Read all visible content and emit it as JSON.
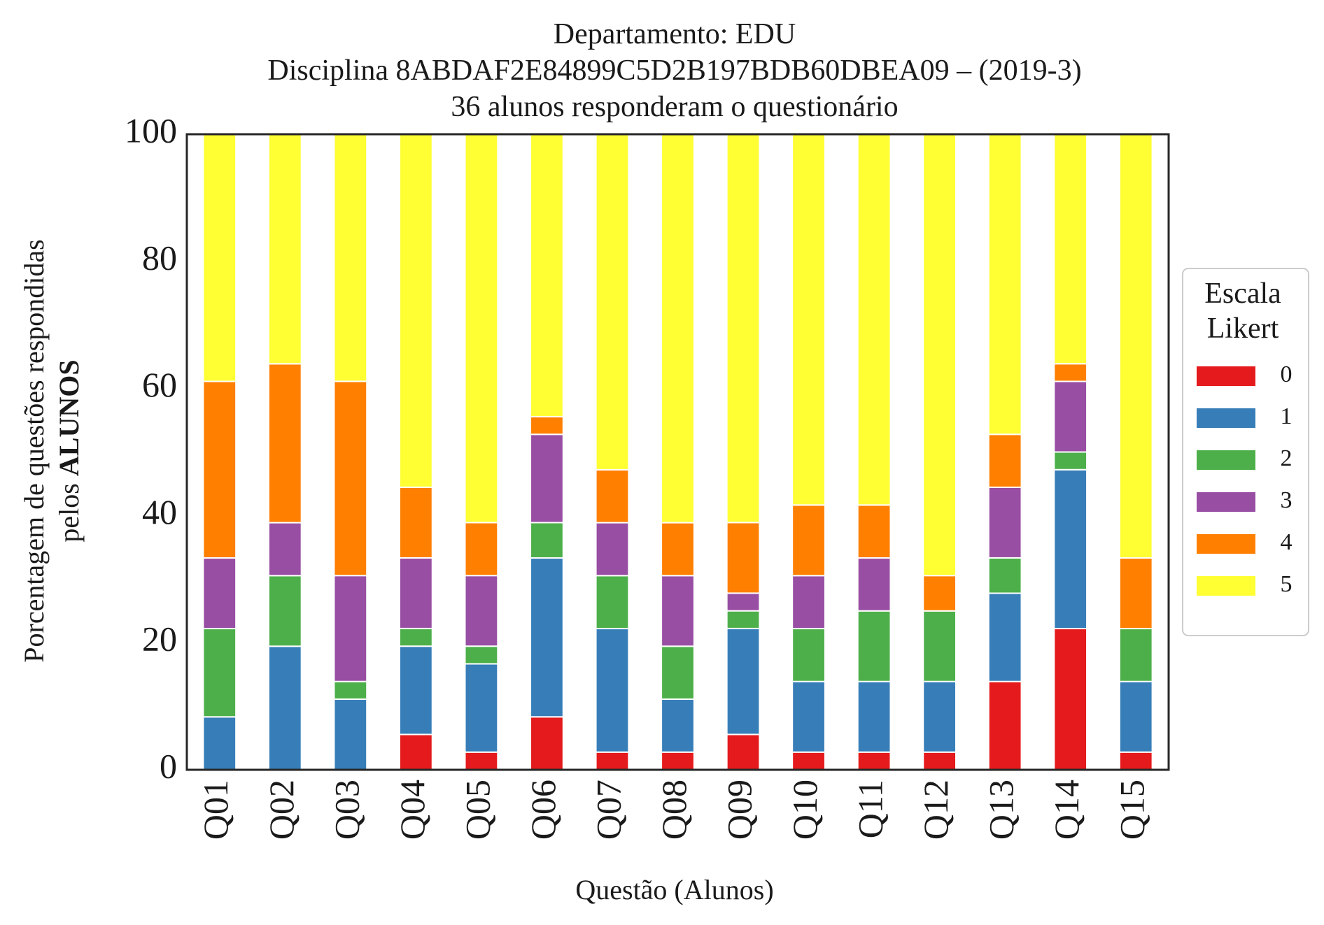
{
  "chart_data": {
    "type": "bar",
    "stacked": true,
    "title_lines": [
      "Departamento: EDU",
      "Disciplina 8ABDAF2E84899C5D2B197BDB60DBEA09 – (2019-3)",
      "36 alunos responderam o questionário"
    ],
    "xlabel": "Questão (Alunos)",
    "ylabel_line1": "Porcentagem de questões respondidas",
    "ylabel_line2_prefix": "pelos ",
    "ylabel_line2_bold": "ALUNOS",
    "ylim": [
      0,
      100
    ],
    "yticks": [
      "0",
      "20",
      "40",
      "60",
      "80",
      "100"
    ],
    "grid": false,
    "legend_position": "right",
    "legend_title_lines": [
      "Escala",
      "Likert"
    ],
    "categories": [
      "Q01",
      "Q02",
      "Q03",
      "Q04",
      "Q05",
      "Q06",
      "Q07",
      "Q08",
      "Q09",
      "Q10",
      "Q11",
      "Q12",
      "Q13",
      "Q14",
      "Q15"
    ],
    "series": [
      {
        "name": "0",
        "color": "#e41a1c",
        "values": [
          0,
          0,
          0,
          5.56,
          2.78,
          8.33,
          2.78,
          2.78,
          5.56,
          2.78,
          2.78,
          2.78,
          13.89,
          22.22,
          2.78
        ]
      },
      {
        "name": "1",
        "color": "#377eb8",
        "values": [
          8.33,
          19.44,
          11.11,
          13.89,
          13.89,
          25.0,
          19.44,
          8.33,
          16.67,
          11.11,
          11.11,
          11.11,
          13.89,
          25.0,
          11.11
        ]
      },
      {
        "name": "2",
        "color": "#4daf4a",
        "values": [
          13.89,
          11.11,
          2.78,
          2.78,
          2.78,
          5.56,
          8.33,
          8.33,
          2.78,
          8.33,
          11.11,
          11.11,
          5.56,
          2.78,
          8.33
        ]
      },
      {
        "name": "3",
        "color": "#984ea3",
        "values": [
          11.11,
          8.33,
          16.67,
          11.11,
          11.11,
          13.89,
          8.33,
          11.11,
          2.78,
          8.33,
          8.33,
          0,
          11.11,
          11.11,
          0
        ]
      },
      {
        "name": "4",
        "color": "#ff7f00",
        "values": [
          27.78,
          25.0,
          30.56,
          11.11,
          8.33,
          2.78,
          8.33,
          8.33,
          11.11,
          11.11,
          8.33,
          5.56,
          8.33,
          2.78,
          11.11
        ]
      },
      {
        "name": "5",
        "color": "#ffff33",
        "values": [
          38.89,
          36.11,
          38.89,
          55.56,
          61.11,
          44.44,
          52.78,
          61.11,
          61.11,
          58.33,
          58.33,
          69.44,
          47.22,
          36.11,
          66.67
        ]
      }
    ]
  }
}
